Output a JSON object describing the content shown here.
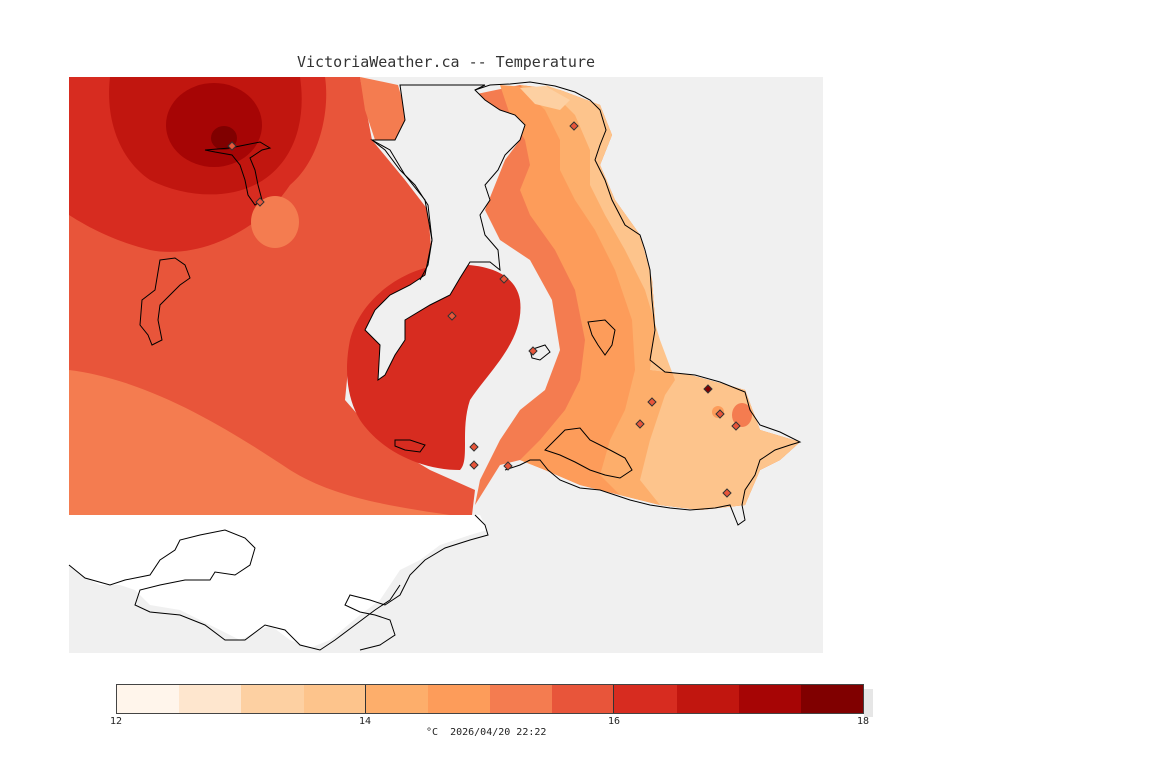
{
  "header": {
    "title": "VictoriaWeather.ca -- Temperature"
  },
  "legend": {
    "colors": [
      "#fff5eb",
      "#fee6ce",
      "#fdd0a2",
      "#fdc48c",
      "#fdae6b",
      "#fd9c5a",
      "#f47c50",
      "#e8553a",
      "#d72c20",
      "#c1160f",
      "#a60505",
      "#800000"
    ],
    "ticks": [
      "12",
      "14",
      "16",
      "18"
    ],
    "units_time": "°C  2026/04/20 22:22"
  },
  "map": {
    "background": "#f0f0f0",
    "land_outline": "#000000",
    "station_icon": "diamond-icon"
  }
}
